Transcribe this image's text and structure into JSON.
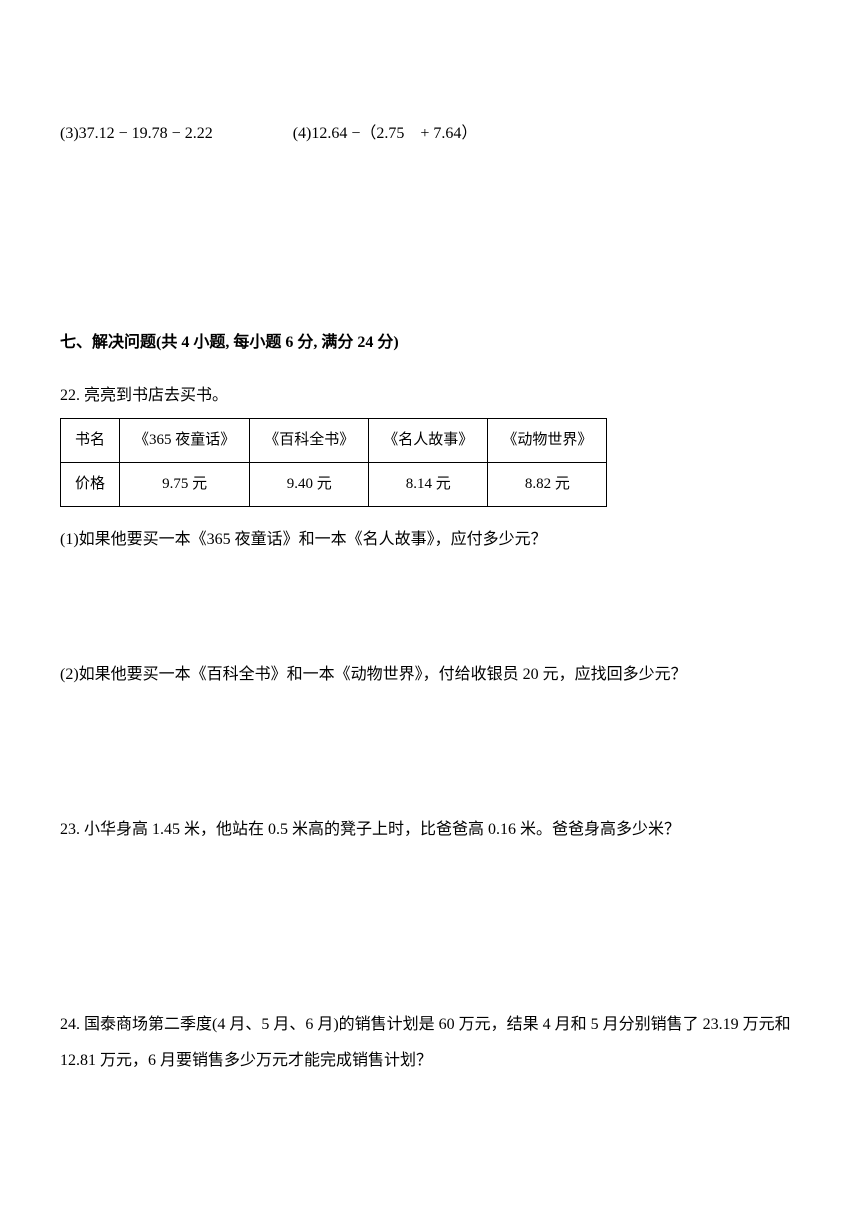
{
  "equations": {
    "eq3": "(3)37.12 − 19.78 − 2.22",
    "eq4": "(4)12.64 −（2.75　+ 7.64）"
  },
  "section7": {
    "heading": "七、解决问题(共 4 小题, 每小题 6 分, 满分 24 分)"
  },
  "q22": {
    "intro": "22. 亮亮到书店去买书。",
    "table": {
      "row_header_1": "书名",
      "row_header_2": "价格",
      "books": [
        {
          "name": "《365 夜童话》",
          "price": "9.75 元"
        },
        {
          "name": "《百科全书》",
          "price": "9.40 元"
        },
        {
          "name": "《名人故事》",
          "price": "8.14 元"
        },
        {
          "name": "《动物世界》",
          "price": "8.82 元"
        }
      ]
    },
    "sub1": "(1)如果他要买一本《365 夜童话》和一本《名人故事》，应付多少元？",
    "sub2": "(2)如果他要买一本《百科全书》和一本《动物世界》，付给收银员 20 元，应找回多少元？"
  },
  "q23": {
    "text": "23. 小华身高 1.45 米，他站在 0.5 米高的凳子上时，比爸爸高 0.16 米。爸爸身高多少米？"
  },
  "q24": {
    "text": "24. 国泰商场第二季度(4 月、5 月、6 月)的销售计划是 60 万元，结果 4 月和 5 月分别销售了 23.19 万元和 12.81 万元，6 月要销售多少万元才能完成销售计划？"
  }
}
